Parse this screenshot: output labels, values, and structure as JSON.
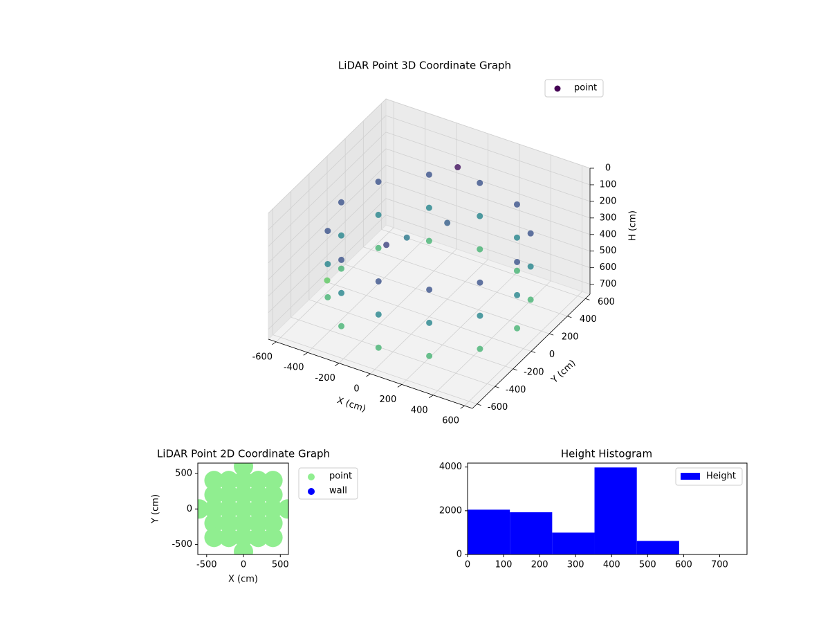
{
  "chart_data": [
    {
      "type": "scatter3d",
      "title": "LiDAR Point 3D Coordinate Graph",
      "x_label": "X (cm)",
      "y_label": "Y (cm)",
      "z_label": "H (cm)",
      "xlim": [
        -650,
        650
      ],
      "ylim": [
        -650,
        650
      ],
      "zlim": [
        0,
        760
      ],
      "z_inverted": true,
      "xticks": [
        -600,
        -400,
        -200,
        0,
        200,
        400,
        600
      ],
      "yticks": [
        -600,
        -400,
        -200,
        0,
        200,
        400,
        600
      ],
      "zticks": [
        0,
        100,
        200,
        300,
        400,
        500,
        600,
        700
      ],
      "colormap": "viridis",
      "clim": [
        0,
        1000
      ],
      "legend": "upper right",
      "grid": true,
      "series": [
        {
          "name": "point",
          "color": "#440154",
          "x": [
            560,
            485,
            280,
            0,
            -280,
            -485,
            -560,
            -485,
            -280,
            0,
            280,
            485,
            560,
            485,
            280,
            0,
            -280,
            -485,
            -560,
            -485,
            -280,
            0,
            280,
            485,
            560,
            485,
            280,
            0,
            -280,
            -485,
            -560,
            -485,
            -280,
            0,
            280,
            485,
            -200,
            0,
            -100,
            -20,
            -650
          ],
          "y": [
            0,
            280,
            485,
            560,
            485,
            280,
            0,
            -280,
            -485,
            -560,
            -485,
            -280,
            0,
            280,
            485,
            560,
            485,
            280,
            0,
            -280,
            -485,
            -560,
            -485,
            -280,
            0,
            280,
            485,
            560,
            485,
            280,
            0,
            -280,
            -485,
            -560,
            -485,
            -280,
            100,
            200,
            -300,
            350,
            0
          ],
          "z": [
            250,
            250,
            250,
            250,
            250,
            250,
            250,
            250,
            250,
            250,
            250,
            250,
            450,
            450,
            450,
            450,
            450,
            450,
            450,
            450,
            450,
            450,
            450,
            450,
            650,
            650,
            650,
            650,
            650,
            650,
            650,
            650,
            650,
            650,
            650,
            650,
            400,
            300,
            200,
            50,
            750
          ]
        }
      ]
    },
    {
      "type": "scatter",
      "title": "LiDAR Point 2D Coordinate Graph",
      "x_label": "X (cm)",
      "y_label": "Y (cm)",
      "xlim": [
        -620,
        610
      ],
      "ylim": [
        -640,
        645
      ],
      "xticks": [
        -500,
        0,
        500
      ],
      "yticks": [
        -500,
        0,
        500
      ],
      "legend": "outside right",
      "series": [
        {
          "name": "point",
          "color": "#90ee90",
          "x": [
            0,
            -400,
            -200,
            0,
            200,
            400,
            -400,
            -200,
            0,
            200,
            400,
            -600,
            -400,
            -200,
            0,
            200,
            400,
            600,
            -400,
            -200,
            0,
            200,
            400,
            -400,
            -200,
            0,
            200,
            400,
            0
          ],
          "y": [
            600,
            400,
            400,
            400,
            400,
            400,
            200,
            200,
            200,
            200,
            200,
            0,
            0,
            0,
            0,
            0,
            0,
            0,
            -200,
            -200,
            -200,
            -200,
            -200,
            -400,
            -400,
            -400,
            -400,
            -400,
            -600
          ]
        },
        {
          "name": "wall",
          "color": "#0000ff",
          "x": [],
          "y": []
        }
      ]
    },
    {
      "type": "histogram",
      "title": "Height Histogram",
      "bins": [
        0,
        117.5,
        235,
        352.5,
        470,
        587.5,
        705
      ],
      "series": [
        {
          "name": "Height",
          "color": "#0000ff",
          "values": [
            2050,
            1930,
            1000,
            3980,
            620,
            5
          ]
        }
      ],
      "xlim": [
        0,
        776
      ],
      "ylim": [
        0,
        4180
      ],
      "xticks": [
        0,
        100,
        200,
        300,
        400,
        500,
        600,
        700
      ],
      "yticks": [
        0,
        2000,
        4000
      ],
      "legend": "upper right"
    }
  ]
}
